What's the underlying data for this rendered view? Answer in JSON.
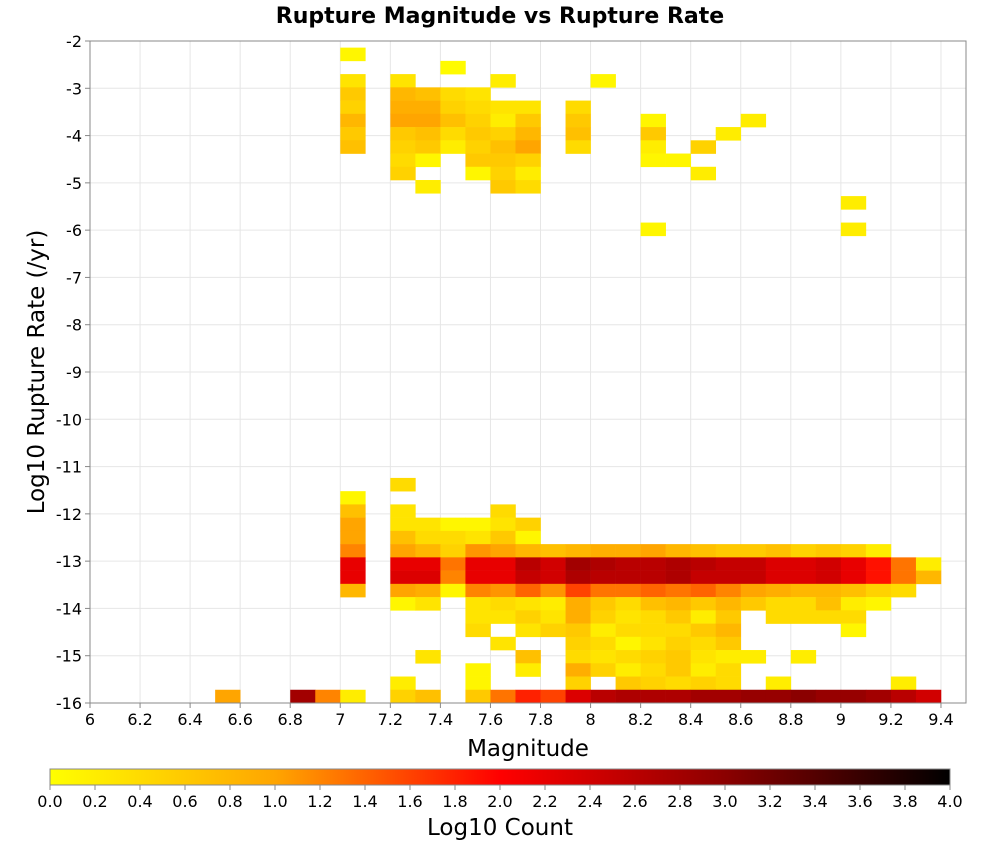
{
  "chart_data": {
    "type": "heatmap",
    "title": "Rupture Magnitude vs Rupture Rate",
    "xlabel": "Magnitude",
    "ylabel": "Log10 Rupture Rate (/yr)",
    "xlim": [
      6,
      9.5
    ],
    "ylim": [
      -16,
      -2
    ],
    "x_ticks": [
      "6",
      "6.2",
      "6.4",
      "6.6",
      "6.8",
      "7",
      "7.2",
      "7.4",
      "7.6",
      "7.8",
      "8",
      "8.2",
      "8.4",
      "8.6",
      "8.8",
      "9",
      "9.2",
      "9.4"
    ],
    "y_ticks": [
      "-2",
      "-3",
      "-4",
      "-5",
      "-6",
      "-7",
      "-8",
      "-9",
      "-10",
      "-11",
      "-12",
      "-13",
      "-14",
      "-15",
      "-16"
    ],
    "bin_width_x": 0.1,
    "bin_height_y": 0.28,
    "colorbar": {
      "label": "Log10 Count",
      "range": [
        0,
        4
      ],
      "ticks": [
        "0.0",
        "0.2",
        "0.4",
        "0.6",
        "0.8",
        "1.0",
        "1.2",
        "1.4",
        "1.6",
        "1.8",
        "2.0",
        "2.2",
        "2.4",
        "2.6",
        "2.8",
        "3.0",
        "3.2",
        "3.4",
        "3.6",
        "3.8",
        "4.0"
      ],
      "stops": [
        "#ffff00",
        "#ffa500",
        "#ff0000",
        "#8b0000",
        "#000000"
      ]
    },
    "cells": [
      [
        7.05,
        -2.28,
        0.1
      ],
      [
        7.45,
        -2.56,
        0.05
      ],
      [
        7.05,
        -2.84,
        0.3
      ],
      [
        7.25,
        -2.84,
        0.3
      ],
      [
        7.65,
        -2.84,
        0.2
      ],
      [
        8.05,
        -2.84,
        0.1
      ],
      [
        7.05,
        -3.12,
        0.6
      ],
      [
        7.25,
        -3.12,
        0.8
      ],
      [
        7.35,
        -3.12,
        0.7
      ],
      [
        7.45,
        -3.12,
        0.4
      ],
      [
        7.55,
        -3.12,
        0.3
      ],
      [
        7.05,
        -3.4,
        0.5
      ],
      [
        7.25,
        -3.4,
        0.9
      ],
      [
        7.35,
        -3.4,
        0.9
      ],
      [
        7.45,
        -3.4,
        0.5
      ],
      [
        7.55,
        -3.4,
        0.4
      ],
      [
        7.65,
        -3.4,
        0.3
      ],
      [
        7.75,
        -3.4,
        0.3
      ],
      [
        7.95,
        -3.4,
        0.4
      ],
      [
        7.05,
        -3.68,
        0.8
      ],
      [
        7.25,
        -3.68,
        1.0
      ],
      [
        7.35,
        -3.68,
        1.0
      ],
      [
        7.45,
        -3.68,
        0.7
      ],
      [
        7.55,
        -3.68,
        0.5
      ],
      [
        7.65,
        -3.68,
        0.2
      ],
      [
        7.75,
        -3.68,
        0.6
      ],
      [
        7.95,
        -3.68,
        0.6
      ],
      [
        8.25,
        -3.68,
        0.1
      ],
      [
        8.65,
        -3.68,
        0.2
      ],
      [
        7.05,
        -3.96,
        0.6
      ],
      [
        7.25,
        -3.96,
        0.6
      ],
      [
        7.35,
        -3.96,
        0.7
      ],
      [
        7.45,
        -3.96,
        0.4
      ],
      [
        7.55,
        -3.96,
        0.6
      ],
      [
        7.65,
        -3.96,
        0.5
      ],
      [
        7.75,
        -3.96,
        0.8
      ],
      [
        7.95,
        -3.96,
        0.7
      ],
      [
        8.25,
        -3.96,
        0.6
      ],
      [
        8.55,
        -3.96,
        0.2
      ],
      [
        7.05,
        -4.24,
        0.7
      ],
      [
        7.25,
        -4.24,
        0.5
      ],
      [
        7.35,
        -4.24,
        0.6
      ],
      [
        7.45,
        -4.24,
        0.2
      ],
      [
        7.55,
        -4.24,
        0.5
      ],
      [
        7.65,
        -4.24,
        0.7
      ],
      [
        7.75,
        -4.24,
        1.0
      ],
      [
        7.95,
        -4.24,
        0.4
      ],
      [
        8.25,
        -4.24,
        0.2
      ],
      [
        8.45,
        -4.24,
        0.5
      ],
      [
        7.25,
        -4.52,
        0.4
      ],
      [
        7.35,
        -4.52,
        0.1
      ],
      [
        7.55,
        -4.52,
        0.6
      ],
      [
        7.65,
        -4.52,
        0.6
      ],
      [
        7.75,
        -4.52,
        0.5
      ],
      [
        8.25,
        -4.52,
        0.1
      ],
      [
        8.35,
        -4.52,
        0.1
      ],
      [
        7.25,
        -4.8,
        0.5
      ],
      [
        7.55,
        -4.8,
        0.1
      ],
      [
        7.65,
        -4.8,
        0.5
      ],
      [
        7.75,
        -4.8,
        0.2
      ],
      [
        8.45,
        -4.8,
        0.2
      ],
      [
        7.35,
        -5.08,
        0.2
      ],
      [
        7.65,
        -5.08,
        0.6
      ],
      [
        7.75,
        -5.08,
        0.4
      ],
      [
        9.05,
        -5.42,
        0.2
      ],
      [
        8.25,
        -5.98,
        0.1
      ],
      [
        9.05,
        -5.98,
        0.2
      ],
      [
        7.25,
        -11.38,
        0.4
      ],
      [
        7.05,
        -11.66,
        0.1
      ],
      [
        7.05,
        -11.94,
        0.7
      ],
      [
        7.25,
        -11.94,
        0.3
      ],
      [
        7.65,
        -11.94,
        0.4
      ],
      [
        7.05,
        -12.22,
        1.0
      ],
      [
        7.25,
        -12.22,
        0.3
      ],
      [
        7.35,
        -12.22,
        0.3
      ],
      [
        7.45,
        -12.22,
        0.1
      ],
      [
        7.55,
        -12.22,
        0.1
      ],
      [
        7.65,
        -12.22,
        0.3
      ],
      [
        7.75,
        -12.22,
        0.5
      ],
      [
        7.05,
        -12.5,
        1.0
      ],
      [
        7.25,
        -12.5,
        0.7
      ],
      [
        7.35,
        -12.5,
        0.4
      ],
      [
        7.45,
        -12.5,
        0.4
      ],
      [
        7.55,
        -12.5,
        0.3
      ],
      [
        7.65,
        -12.5,
        0.6
      ],
      [
        7.75,
        -12.5,
        0.1
      ],
      [
        7.05,
        -12.78,
        1.2
      ],
      [
        7.25,
        -12.78,
        1.0
      ],
      [
        7.35,
        -12.78,
        0.8
      ],
      [
        7.45,
        -12.78,
        0.5
      ],
      [
        7.55,
        -12.78,
        1.1
      ],
      [
        7.65,
        -12.78,
        1.0
      ],
      [
        7.75,
        -12.78,
        0.8
      ],
      [
        7.85,
        -12.78,
        0.7
      ],
      [
        7.95,
        -12.78,
        0.8
      ],
      [
        8.05,
        -12.78,
        0.9
      ],
      [
        8.15,
        -12.78,
        0.9
      ],
      [
        8.25,
        -12.78,
        1.0
      ],
      [
        8.35,
        -12.78,
        0.8
      ],
      [
        8.45,
        -12.78,
        0.7
      ],
      [
        8.55,
        -12.78,
        0.6
      ],
      [
        8.65,
        -12.78,
        0.6
      ],
      [
        8.75,
        -12.78,
        0.7
      ],
      [
        8.85,
        -12.78,
        0.5
      ],
      [
        8.95,
        -12.78,
        0.6
      ],
      [
        9.05,
        -12.78,
        0.5
      ],
      [
        9.15,
        -12.78,
        0.2
      ],
      [
        7.05,
        -13.06,
        2.2
      ],
      [
        7.25,
        -13.06,
        2.2
      ],
      [
        7.35,
        -13.06,
        2.2
      ],
      [
        7.45,
        -13.06,
        1.3
      ],
      [
        7.55,
        -13.06,
        2.2
      ],
      [
        7.65,
        -13.06,
        2.2
      ],
      [
        7.75,
        -13.06,
        2.6
      ],
      [
        7.85,
        -13.06,
        2.4
      ],
      [
        7.95,
        -13.06,
        2.8
      ],
      [
        8.05,
        -13.06,
        2.7
      ],
      [
        8.15,
        -13.06,
        2.6
      ],
      [
        8.25,
        -13.06,
        2.6
      ],
      [
        8.35,
        -13.06,
        2.7
      ],
      [
        8.45,
        -13.06,
        2.6
      ],
      [
        8.55,
        -13.06,
        2.5
      ],
      [
        8.65,
        -13.06,
        2.5
      ],
      [
        8.75,
        -13.06,
        2.3
      ],
      [
        8.85,
        -13.06,
        2.3
      ],
      [
        8.95,
        -13.06,
        2.4
      ],
      [
        9.05,
        -13.06,
        2.2
      ],
      [
        9.15,
        -13.06,
        1.9
      ],
      [
        9.25,
        -13.06,
        1.3
      ],
      [
        9.35,
        -13.06,
        0.2
      ],
      [
        7.05,
        -13.34,
        2.2
      ],
      [
        7.25,
        -13.34,
        2.3
      ],
      [
        7.35,
        -13.34,
        2.3
      ],
      [
        7.45,
        -13.34,
        1.2
      ],
      [
        7.55,
        -13.34,
        2.2
      ],
      [
        7.65,
        -13.34,
        2.2
      ],
      [
        7.75,
        -13.34,
        2.5
      ],
      [
        7.85,
        -13.34,
        2.4
      ],
      [
        7.95,
        -13.34,
        2.7
      ],
      [
        8.05,
        -13.34,
        2.6
      ],
      [
        8.15,
        -13.34,
        2.6
      ],
      [
        8.25,
        -13.34,
        2.6
      ],
      [
        8.35,
        -13.34,
        2.7
      ],
      [
        8.45,
        -13.34,
        2.5
      ],
      [
        8.55,
        -13.34,
        2.5
      ],
      [
        8.65,
        -13.34,
        2.5
      ],
      [
        8.75,
        -13.34,
        2.3
      ],
      [
        8.85,
        -13.34,
        2.3
      ],
      [
        8.95,
        -13.34,
        2.4
      ],
      [
        9.05,
        -13.34,
        2.2
      ],
      [
        9.15,
        -13.34,
        1.9
      ],
      [
        9.25,
        -13.34,
        1.3
      ],
      [
        9.35,
        -13.34,
        0.8
      ],
      [
        7.05,
        -13.62,
        0.8
      ],
      [
        7.25,
        -13.62,
        1.0
      ],
      [
        7.35,
        -13.62,
        0.9
      ],
      [
        7.45,
        -13.62,
        0.1
      ],
      [
        7.55,
        -13.62,
        1.2
      ],
      [
        7.65,
        -13.62,
        1.1
      ],
      [
        7.75,
        -13.62,
        1.4
      ],
      [
        7.85,
        -13.62,
        1.1
      ],
      [
        7.95,
        -13.62,
        1.6
      ],
      [
        8.05,
        -13.62,
        1.3
      ],
      [
        8.15,
        -13.62,
        1.3
      ],
      [
        8.25,
        -13.62,
        1.4
      ],
      [
        8.35,
        -13.62,
        1.3
      ],
      [
        8.45,
        -13.62,
        1.4
      ],
      [
        8.55,
        -13.62,
        1.2
      ],
      [
        8.65,
        -13.62,
        1.0
      ],
      [
        8.75,
        -13.62,
        0.9
      ],
      [
        8.85,
        -13.62,
        0.8
      ],
      [
        8.95,
        -13.62,
        0.8
      ],
      [
        9.05,
        -13.62,
        0.7
      ],
      [
        9.15,
        -13.62,
        0.5
      ],
      [
        9.25,
        -13.62,
        0.4
      ],
      [
        7.25,
        -13.9,
        0.1
      ],
      [
        7.35,
        -13.9,
        0.3
      ],
      [
        7.55,
        -13.9,
        0.3
      ],
      [
        7.65,
        -13.9,
        0.4
      ],
      [
        7.75,
        -13.9,
        0.3
      ],
      [
        7.85,
        -13.9,
        0.2
      ],
      [
        7.95,
        -13.9,
        0.9
      ],
      [
        8.05,
        -13.9,
        0.6
      ],
      [
        8.15,
        -13.9,
        0.4
      ],
      [
        8.25,
        -13.9,
        0.7
      ],
      [
        8.35,
        -13.9,
        0.8
      ],
      [
        8.45,
        -13.9,
        0.6
      ],
      [
        8.55,
        -13.9,
        0.8
      ],
      [
        8.65,
        -13.9,
        0.6
      ],
      [
        8.75,
        -13.9,
        0.4
      ],
      [
        8.85,
        -13.9,
        0.4
      ],
      [
        8.95,
        -13.9,
        0.7
      ],
      [
        9.05,
        -13.9,
        0.2
      ],
      [
        9.15,
        -13.9,
        0.1
      ],
      [
        7.55,
        -14.18,
        0.3
      ],
      [
        7.65,
        -14.18,
        0.3
      ],
      [
        7.75,
        -14.18,
        0.5
      ],
      [
        7.85,
        -14.18,
        0.3
      ],
      [
        7.95,
        -14.18,
        0.9
      ],
      [
        8.05,
        -14.18,
        0.5
      ],
      [
        8.15,
        -14.18,
        0.3
      ],
      [
        8.25,
        -14.18,
        0.4
      ],
      [
        8.35,
        -14.18,
        0.6
      ],
      [
        8.45,
        -14.18,
        0.2
      ],
      [
        8.55,
        -14.18,
        0.6
      ],
      [
        8.75,
        -14.18,
        0.4
      ],
      [
        8.85,
        -14.18,
        0.4
      ],
      [
        8.95,
        -14.18,
        0.4
      ],
      [
        9.05,
        -14.18,
        0.4
      ],
      [
        7.55,
        -14.46,
        0.4
      ],
      [
        7.75,
        -14.46,
        0.3
      ],
      [
        7.85,
        -14.46,
        0.5
      ],
      [
        7.95,
        -14.46,
        0.6
      ],
      [
        8.05,
        -14.46,
        0.2
      ],
      [
        8.15,
        -14.46,
        0.4
      ],
      [
        8.25,
        -14.46,
        0.4
      ],
      [
        8.35,
        -14.46,
        0.4
      ],
      [
        8.45,
        -14.46,
        0.6
      ],
      [
        8.55,
        -14.46,
        0.8
      ],
      [
        9.05,
        -14.46,
        0.1
      ],
      [
        7.65,
        -14.74,
        0.3
      ],
      [
        7.95,
        -14.74,
        0.5
      ],
      [
        8.05,
        -14.74,
        0.4
      ],
      [
        8.15,
        -14.74,
        0.1
      ],
      [
        8.25,
        -14.74,
        0.3
      ],
      [
        8.35,
        -14.74,
        0.5
      ],
      [
        8.45,
        -14.74,
        0.4
      ],
      [
        8.55,
        -14.74,
        0.6
      ],
      [
        7.35,
        -15.02,
        0.3
      ],
      [
        7.75,
        -15.02,
        0.7
      ],
      [
        7.95,
        -15.02,
        0.4
      ],
      [
        8.05,
        -15.02,
        0.3
      ],
      [
        8.15,
        -15.02,
        0.4
      ],
      [
        8.25,
        -15.02,
        0.5
      ],
      [
        8.35,
        -15.02,
        0.6
      ],
      [
        8.45,
        -15.02,
        0.3
      ],
      [
        8.55,
        -15.02,
        0.2
      ],
      [
        8.65,
        -15.02,
        0.2
      ],
      [
        8.85,
        -15.02,
        0.2
      ],
      [
        7.55,
        -15.3,
        0.1
      ],
      [
        7.75,
        -15.3,
        0.2
      ],
      [
        7.95,
        -15.3,
        0.9
      ],
      [
        8.05,
        -15.3,
        0.5
      ],
      [
        8.15,
        -15.3,
        0.2
      ],
      [
        8.25,
        -15.3,
        0.4
      ],
      [
        8.35,
        -15.3,
        0.6
      ],
      [
        8.45,
        -15.3,
        0.2
      ],
      [
        8.55,
        -15.3,
        0.4
      ],
      [
        7.25,
        -15.58,
        0.2
      ],
      [
        7.55,
        -15.58,
        0.1
      ],
      [
        7.95,
        -15.58,
        0.5
      ],
      [
        8.15,
        -15.58,
        0.6
      ],
      [
        8.25,
        -15.58,
        0.5
      ],
      [
        8.35,
        -15.58,
        0.4
      ],
      [
        8.45,
        -15.58,
        0.5
      ],
      [
        8.55,
        -15.58,
        0.4
      ],
      [
        8.75,
        -15.58,
        0.2
      ],
      [
        9.25,
        -15.58,
        0.2
      ],
      [
        6.55,
        -15.86,
        1.0
      ],
      [
        6.85,
        -15.86,
        2.8
      ],
      [
        6.95,
        -15.86,
        1.2
      ],
      [
        7.05,
        -15.86,
        0.2
      ],
      [
        7.25,
        -15.86,
        0.5
      ],
      [
        7.35,
        -15.86,
        0.7
      ],
      [
        7.55,
        -15.86,
        0.6
      ],
      [
        7.65,
        -15.86,
        1.3
      ],
      [
        7.75,
        -15.86,
        1.8
      ],
      [
        7.85,
        -15.86,
        1.6
      ],
      [
        7.95,
        -15.86,
        2.3
      ],
      [
        8.05,
        -15.86,
        2.6
      ],
      [
        8.15,
        -15.86,
        2.7
      ],
      [
        8.25,
        -15.86,
        2.7
      ],
      [
        8.35,
        -15.86,
        2.7
      ],
      [
        8.45,
        -15.86,
        2.8
      ],
      [
        8.55,
        -15.86,
        2.8
      ],
      [
        8.65,
        -15.86,
        2.9
      ],
      [
        8.75,
        -15.86,
        2.9
      ],
      [
        8.85,
        -15.86,
        3.0
      ],
      [
        8.95,
        -15.86,
        2.9
      ],
      [
        9.05,
        -15.86,
        2.9
      ],
      [
        9.15,
        -15.86,
        2.8
      ],
      [
        9.25,
        -15.86,
        2.6
      ],
      [
        9.35,
        -15.86,
        2.4
      ]
    ]
  }
}
